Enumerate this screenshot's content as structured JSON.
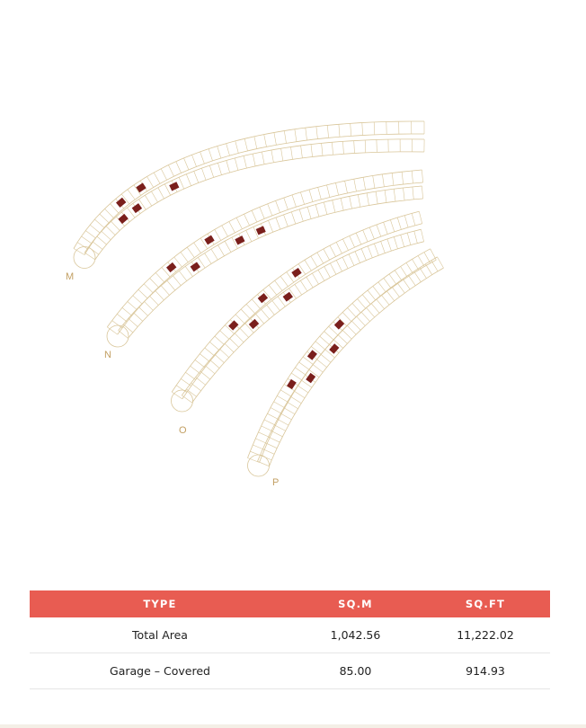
{
  "plan": {
    "rows": [
      "M",
      "N",
      "O",
      "P"
    ],
    "colors": {
      "outline": "#d9c69a",
      "highlight": "#7a1f1c",
      "label": "#c29f62"
    }
  },
  "table": {
    "headers": [
      "TYPE",
      "SQ.M",
      "SQ.FT"
    ],
    "rows": [
      [
        "Total Area",
        "1,042.56",
        "11,222.02"
      ],
      [
        "Garage – Covered",
        "85.00",
        "914.93"
      ]
    ],
    "header_color": "#e85c52"
  }
}
